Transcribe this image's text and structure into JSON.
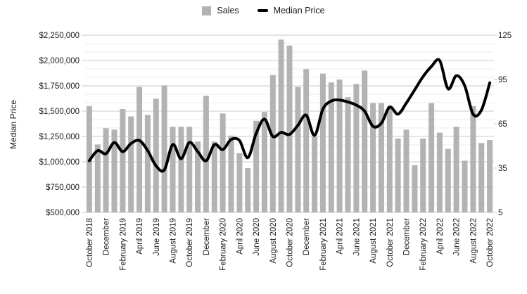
{
  "chart_data": {
    "type": "combo",
    "title": "",
    "legend_position": "top-center",
    "grid": {
      "major_color": "#c9c9c9",
      "minor_color": "#ebebeb",
      "minor_per_major": 3
    },
    "colors": {
      "bar": "#b3b3b3",
      "line": "#000000",
      "background": "#ffffff"
    },
    "legend": [
      {
        "label": "Sales",
        "swatch": "bar-square"
      },
      {
        "label": "Median Price",
        "swatch": "line-dash"
      }
    ],
    "categories": [
      "October 2018",
      "November 2018",
      "December 2018",
      "January 2019",
      "February 2019",
      "March 2019",
      "April 2019",
      "May 2019",
      "June 2019",
      "July 2019",
      "August 2019",
      "September 2019",
      "October 2019",
      "November 2019",
      "December 2019",
      "January 2020",
      "February 2020",
      "March 2020",
      "April 2020",
      "May 2020",
      "June 2020",
      "July 2020",
      "August 2020",
      "September 2020",
      "October 2020",
      "November 2020",
      "December 2020",
      "January 2021",
      "February 2021",
      "March 2021",
      "April 2021",
      "May 2021",
      "June 2021",
      "July 2021",
      "August 2021",
      "September 2021",
      "October 2021",
      "November 2021",
      "December 2021",
      "January 2022",
      "February 2022",
      "March 2022",
      "April 2022",
      "May 2022",
      "June 2022",
      "July 2022",
      "August 2022",
      "September 2022",
      "October 2022"
    ],
    "series": [
      {
        "name": "Sales",
        "type": "bar",
        "axis": "right",
        "color": "#b3b3b3",
        "values": [
          77,
          51,
          62,
          61,
          75,
          70,
          90,
          71,
          82,
          91,
          63,
          63,
          63,
          53,
          84,
          53,
          72,
          57,
          45,
          35,
          67,
          73,
          98,
          122,
          118,
          90,
          102,
          56,
          99,
          93,
          95,
          83,
          92,
          101,
          79,
          79,
          77,
          55,
          61,
          37,
          55,
          79,
          59,
          48,
          63,
          40,
          77,
          52,
          54
        ]
      },
      {
        "name": "Median Price",
        "type": "line",
        "axis": "left",
        "color": "#000000",
        "values": [
          1010000,
          1110000,
          1080000,
          1190000,
          1100000,
          1180000,
          1210000,
          1110000,
          960000,
          920000,
          1170000,
          1030000,
          1190000,
          1100000,
          1010000,
          1170000,
          1120000,
          1220000,
          1210000,
          1040000,
          1280000,
          1420000,
          1250000,
          1290000,
          1270000,
          1360000,
          1460000,
          1260000,
          1520000,
          1600000,
          1610000,
          1590000,
          1560000,
          1500000,
          1350000,
          1380000,
          1540000,
          1470000,
          1580000,
          1710000,
          1840000,
          1940000,
          2000000,
          1720000,
          1850000,
          1750000,
          1470000,
          1510000,
          1780000
        ]
      }
    ],
    "left_axis": {
      "title": "Median Price",
      "min": 500000,
      "max": 2250000,
      "tick_step": 250000,
      "tick_labels": [
        "$2,250,000",
        "$2,000,000",
        "$1,750,000",
        "$1,500,000",
        "$1,250,000",
        "$1,000,000",
        "$750,000",
        "$500,000"
      ]
    },
    "right_axis": {
      "min": 5,
      "max": 125,
      "tick_step": 30,
      "tick_labels": [
        "125",
        "95",
        "65",
        "35",
        "5"
      ]
    },
    "x_axis": {
      "label_every": 2,
      "visible_labels": [
        "October 2018",
        "December",
        "February 2019",
        "April 2019",
        "June 2019",
        "August 2019",
        "October 2019",
        "December",
        "February 2020",
        "April 2020",
        "June 2020",
        "August 2020",
        "October 2020",
        "December",
        "February 2021",
        "April 2021",
        "June 2021",
        "August 2021",
        "October 2021",
        "December",
        "February 2022",
        "April 2022",
        "June 2022",
        "August 2022",
        "October 2022"
      ]
    }
  }
}
